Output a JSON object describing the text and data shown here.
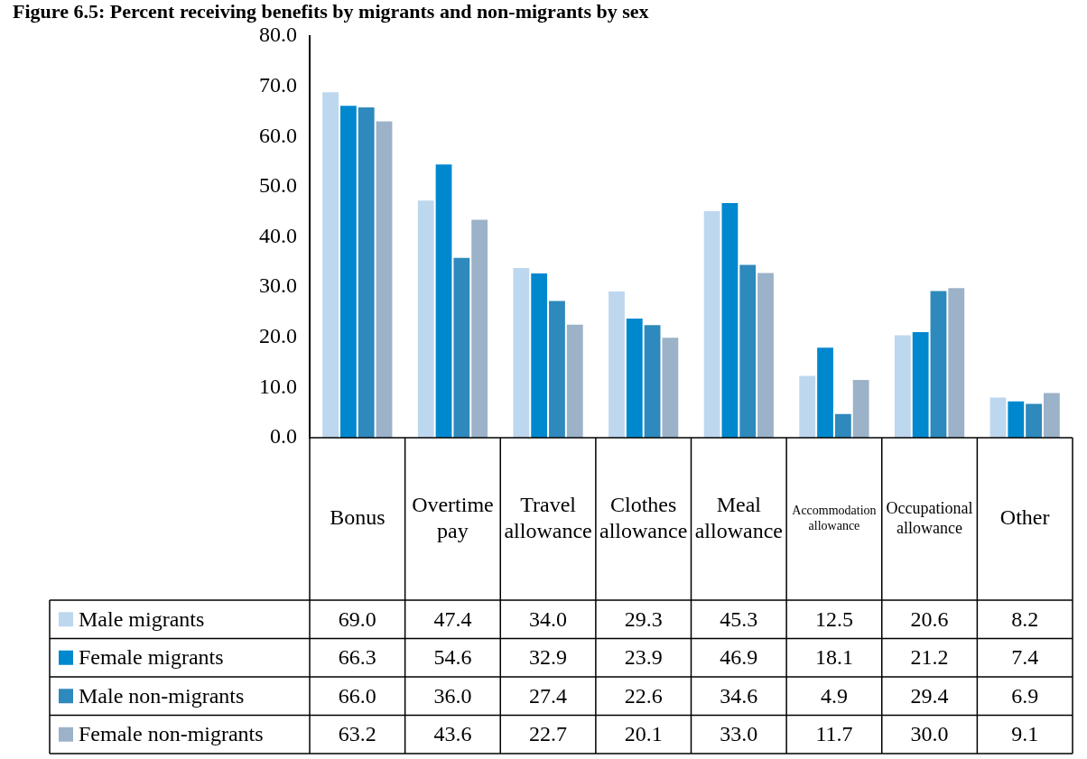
{
  "chart_data": {
    "type": "bar",
    "title": "Figure 6.5: Percent receiving benefits by migrants and non-migrants by sex",
    "categories": [
      "Bonus",
      "Overtime pay",
      "Travel allowance",
      "Clothes allowance",
      "Meal allowance",
      "Accommodation allowance",
      "Occupational allowance",
      "Other"
    ],
    "series": [
      {
        "name": "Male migrants",
        "color": "#bdd7ee",
        "values": [
          69.0,
          47.4,
          34.0,
          29.3,
          45.3,
          12.5,
          20.6,
          8.2
        ],
        "value_labels": [
          "69.0",
          "47.4",
          "34.0",
          "29.3",
          "45.3",
          "12.5",
          "20.6",
          "8.2"
        ]
      },
      {
        "name": "Female migrants",
        "color": "#0088cf",
        "values": [
          66.3,
          54.6,
          32.9,
          23.9,
          46.9,
          18.1,
          21.2,
          7.4
        ],
        "value_labels": [
          "66.3",
          "54.6",
          "32.9",
          "23.9",
          "46.9",
          "18.1",
          "21.2",
          "7.4"
        ]
      },
      {
        "name": "Male non-migrants",
        "color": "#2e89bc",
        "values": [
          66.0,
          36.0,
          27.4,
          22.6,
          34.6,
          4.9,
          29.4,
          6.9
        ],
        "value_labels": [
          "66.0",
          "36.0",
          "27.4",
          "22.6",
          "34.6",
          "4.9",
          "29.4",
          "6.9"
        ]
      },
      {
        "name": "Female non-migrants",
        "color": "#9bb2c8",
        "values": [
          63.2,
          43.6,
          22.7,
          20.1,
          33.0,
          11.7,
          30.0,
          9.1
        ],
        "value_labels": [
          "63.2",
          "43.6",
          "22.7",
          "20.1",
          "33.0",
          "11.7",
          "30.0",
          "9.1"
        ]
      }
    ],
    "ylim": [
      0,
      80
    ],
    "yticks": [
      {
        "value": 0,
        "label": "0.0"
      },
      {
        "value": 10,
        "label": "10.0"
      },
      {
        "value": 20,
        "label": "20.0"
      },
      {
        "value": 30,
        "label": "30.0"
      },
      {
        "value": 40,
        "label": "40.0"
      },
      {
        "value": 50,
        "label": "50.0"
      },
      {
        "value": 60,
        "label": "60.0"
      },
      {
        "value": 70,
        "label": "70.0"
      },
      {
        "value": 80,
        "label": "80.0"
      }
    ],
    "grid": false,
    "legend": "bottom"
  }
}
